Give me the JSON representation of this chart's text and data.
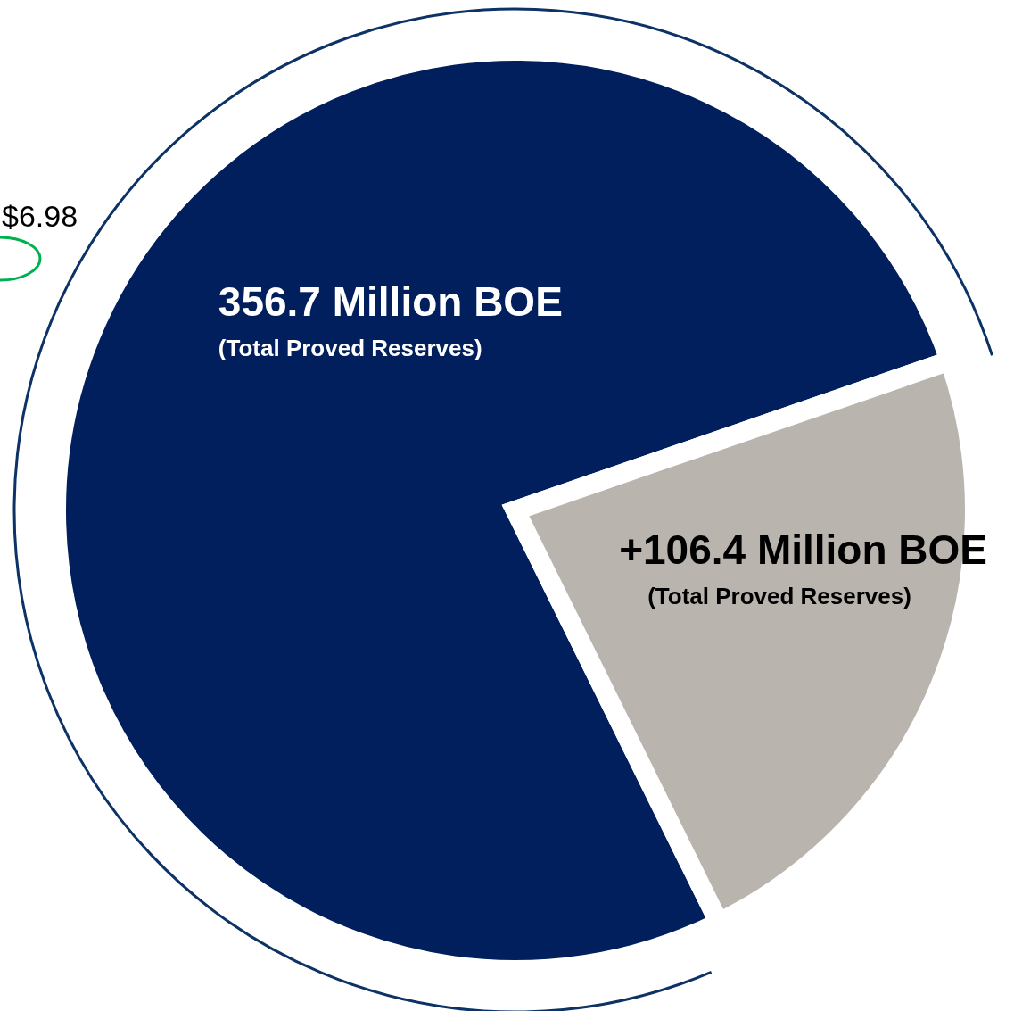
{
  "chart_data": {
    "type": "pie",
    "categories": [
      "(Total Proved Reserves)",
      "(Total Proved Reserves)"
    ],
    "values": [
      356.7,
      106.4
    ],
    "colors": [
      "#001f5c",
      "#b9b4ae"
    ],
    "value_labels": [
      "356.7 Million BOE",
      "+106.4 Million BOE"
    ],
    "annotations": [
      "$6.98"
    ],
    "legend": false
  }
}
